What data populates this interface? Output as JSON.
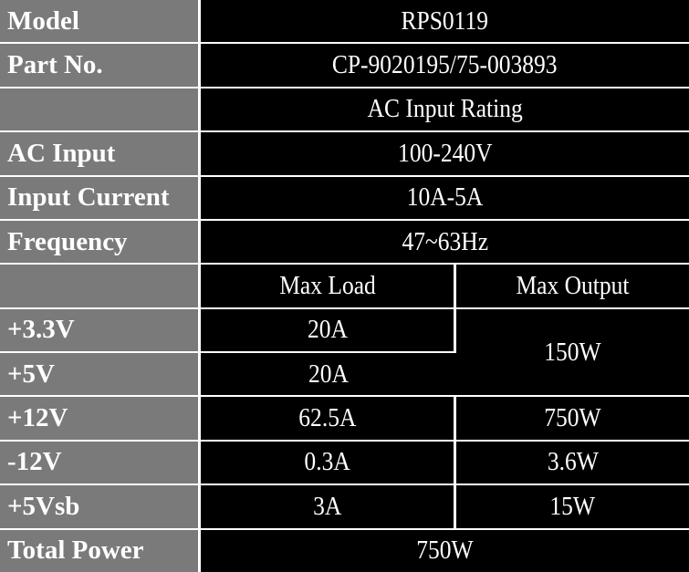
{
  "rows": {
    "model": {
      "label": "Model",
      "value": "RPS0119"
    },
    "part_no": {
      "label": "Part No.",
      "value": "CP-9020195/75-003893"
    },
    "ac_rating": {
      "label": "",
      "value": "AC Input Rating"
    },
    "ac_input": {
      "label": "AC Input",
      "value": "100-240V"
    },
    "input_current": {
      "label": "Input Current",
      "value": "10A-5A"
    },
    "frequency": {
      "label": "Frequency",
      "value": "47~63Hz"
    },
    "header": {
      "label": "",
      "max_load": "Max Load",
      "max_output": "Max Output"
    },
    "v3_3": {
      "label": "+3.3V",
      "max_load": "20A"
    },
    "v5": {
      "label": "+5V",
      "max_load": "20A"
    },
    "combined_3_3_5_output": "150W",
    "v12": {
      "label": "+12V",
      "max_load": "62.5A",
      "max_output": "750W"
    },
    "vneg12": {
      "label": "-12V",
      "max_load": "0.3A",
      "max_output": "3.6W"
    },
    "v5sb": {
      "label": "+5Vsb",
      "max_load": "3A",
      "max_output": "15W"
    },
    "total": {
      "label": "Total Power",
      "value": "750W"
    }
  },
  "colors": {
    "label_bg": "#7a7a7a",
    "value_bg": "#000000",
    "text": "#ffffff",
    "grid": "#ffffff"
  }
}
